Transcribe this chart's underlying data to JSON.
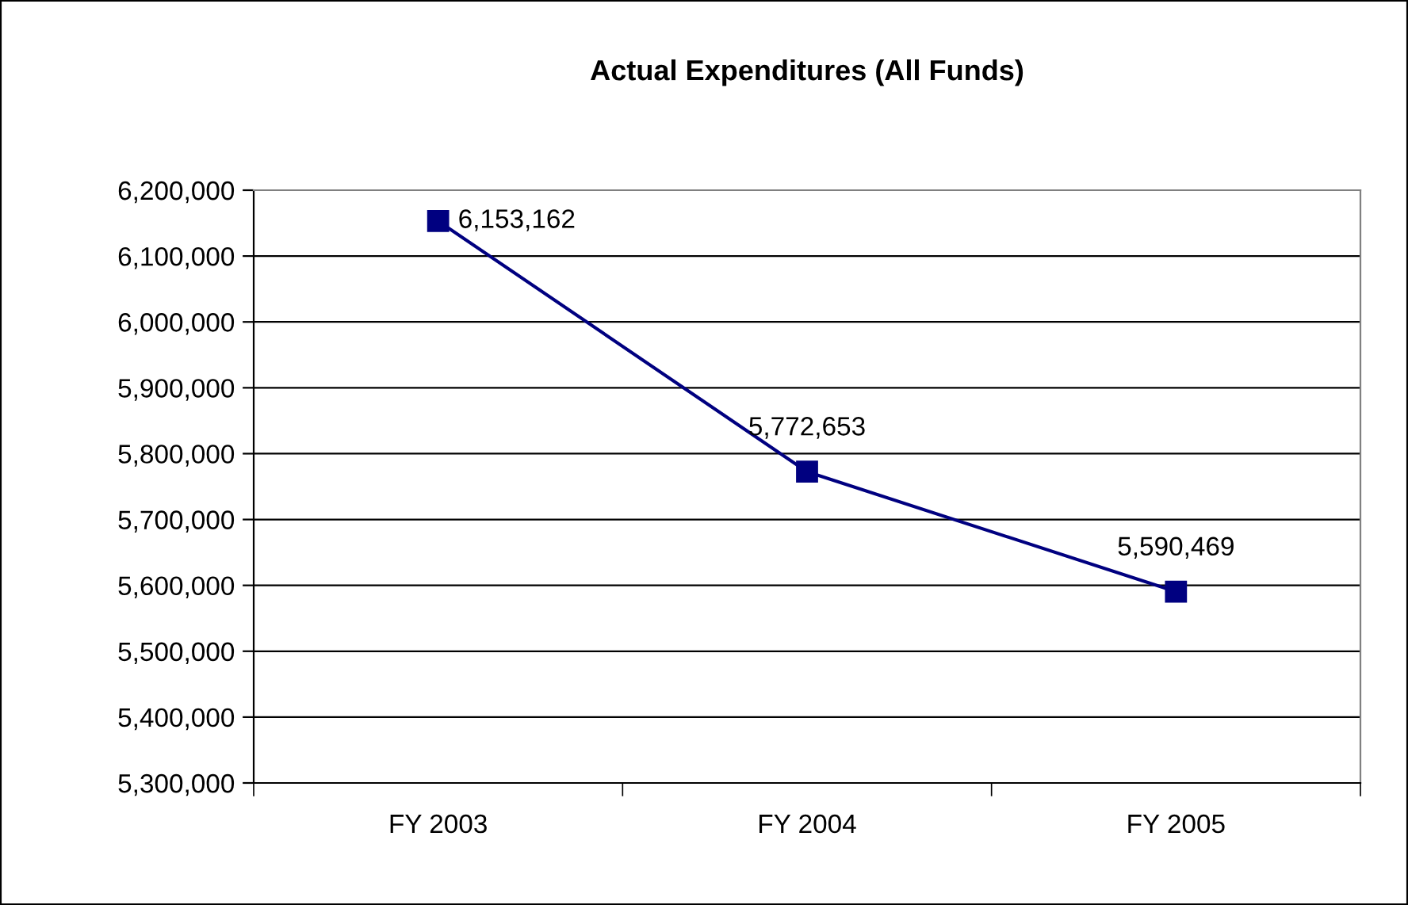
{
  "chart_data": {
    "type": "line",
    "title": "Actual Expenditures (All Funds)",
    "categories": [
      "FY 2003",
      "FY 2004",
      "FY 2005"
    ],
    "series": [
      {
        "color": "#000080",
        "values": [
          6153162,
          5772653,
          5590469
        ],
        "value_labels": [
          "6,153,162",
          "5,772,653",
          "5,590,469"
        ]
      }
    ],
    "ylim": [
      5300000,
      6200000
    ],
    "yticks": [
      {
        "value": 5300000,
        "label": "5,300,000"
      },
      {
        "value": 5400000,
        "label": "5,400,000"
      },
      {
        "value": 5500000,
        "label": "5,500,000"
      },
      {
        "value": 5600000,
        "label": "5,600,000"
      },
      {
        "value": 5700000,
        "label": "5,700,000"
      },
      {
        "value": 5800000,
        "label": "5,800,000"
      },
      {
        "value": 5900000,
        "label": "5,900,000"
      },
      {
        "value": 6000000,
        "label": "6,000,000"
      },
      {
        "value": 6100000,
        "label": "6,100,000"
      },
      {
        "value": 6200000,
        "label": "6,200,000"
      }
    ],
    "grid": "y",
    "marker": "square",
    "line_style": "solid",
    "legend": false
  }
}
